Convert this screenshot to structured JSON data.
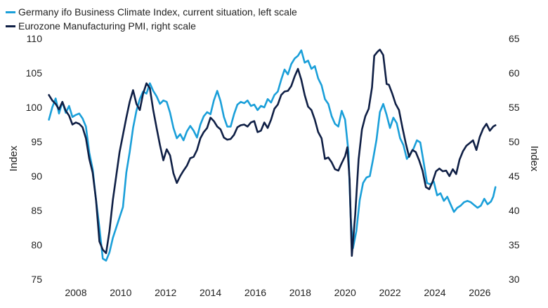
{
  "chart_data": {
    "type": "line",
    "grid": false,
    "legend_position": "top-left",
    "x_ticks": [
      "2008",
      "2010",
      "2012",
      "2014",
      "2016",
      "2018",
      "2020",
      "2022",
      "2024",
      "2026"
    ],
    "xlim": [
      2006.75,
      2027.1
    ],
    "left_axis": {
      "label": "Index",
      "ylim": [
        75,
        110
      ],
      "ticks": [
        "75",
        "80",
        "85",
        "90",
        "95",
        "100",
        "105",
        "110"
      ]
    },
    "right_axis": {
      "label": "Index",
      "ylim": [
        30,
        65
      ],
      "ticks": [
        "30",
        "35",
        "40",
        "45",
        "50",
        "55",
        "60",
        "65"
      ]
    },
    "series": [
      {
        "name": "Germany ifo Business Climate Index, current situation, left scale",
        "axis": "left",
        "color": "#1a9fd9",
        "points": [
          [
            2006.8,
            98.2
          ],
          [
            2006.95,
            100.0
          ],
          [
            2007.1,
            101.3
          ],
          [
            2007.25,
            99.1
          ],
          [
            2007.4,
            100.8
          ],
          [
            2007.55,
            99.2
          ],
          [
            2007.7,
            100.2
          ],
          [
            2007.85,
            98.6
          ],
          [
            2008.0,
            98.9
          ],
          [
            2008.15,
            99.1
          ],
          [
            2008.3,
            98.4
          ],
          [
            2008.45,
            97.2
          ],
          [
            2008.6,
            93.4
          ],
          [
            2008.75,
            91.0
          ],
          [
            2008.9,
            86.5
          ],
          [
            2009.05,
            82.5
          ],
          [
            2009.2,
            78.0
          ],
          [
            2009.35,
            77.7
          ],
          [
            2009.5,
            78.9
          ],
          [
            2009.65,
            81.0
          ],
          [
            2009.8,
            82.5
          ],
          [
            2009.95,
            84.0
          ],
          [
            2010.1,
            85.5
          ],
          [
            2010.25,
            90.5
          ],
          [
            2010.4,
            93.5
          ],
          [
            2010.55,
            97.0
          ],
          [
            2010.7,
            99.5
          ],
          [
            2010.85,
            101.2
          ],
          [
            2011.0,
            102.3
          ],
          [
            2011.15,
            102.0
          ],
          [
            2011.3,
            103.5
          ],
          [
            2011.45,
            102.4
          ],
          [
            2011.6,
            101.6
          ],
          [
            2011.75,
            100.5
          ],
          [
            2011.9,
            101.0
          ],
          [
            2012.05,
            100.8
          ],
          [
            2012.2,
            99.2
          ],
          [
            2012.35,
            97.0
          ],
          [
            2012.5,
            95.5
          ],
          [
            2012.65,
            96.1
          ],
          [
            2012.8,
            95.2
          ],
          [
            2012.95,
            96.5
          ],
          [
            2013.1,
            97.3
          ],
          [
            2013.25,
            96.6
          ],
          [
            2013.4,
            95.6
          ],
          [
            2013.55,
            97.5
          ],
          [
            2013.7,
            98.7
          ],
          [
            2013.85,
            99.3
          ],
          [
            2014.0,
            99.0
          ],
          [
            2014.15,
            101.0
          ],
          [
            2014.3,
            102.4
          ],
          [
            2014.45,
            100.9
          ],
          [
            2014.6,
            98.6
          ],
          [
            2014.75,
            97.2
          ],
          [
            2014.9,
            97.2
          ],
          [
            2015.05,
            99.0
          ],
          [
            2015.2,
            100.4
          ],
          [
            2015.35,
            100.8
          ],
          [
            2015.5,
            100.6
          ],
          [
            2015.65,
            101.0
          ],
          [
            2015.8,
            100.2
          ],
          [
            2015.95,
            100.4
          ],
          [
            2016.1,
            99.6
          ],
          [
            2016.25,
            100.2
          ],
          [
            2016.4,
            100.0
          ],
          [
            2016.55,
            101.2
          ],
          [
            2016.7,
            100.7
          ],
          [
            2016.85,
            101.8
          ],
          [
            2017.0,
            102.3
          ],
          [
            2017.15,
            104.0
          ],
          [
            2017.3,
            105.5
          ],
          [
            2017.45,
            104.8
          ],
          [
            2017.6,
            106.3
          ],
          [
            2017.75,
            107.1
          ],
          [
            2017.9,
            107.5
          ],
          [
            2018.05,
            108.3
          ],
          [
            2018.2,
            106.5
          ],
          [
            2018.35,
            106.8
          ],
          [
            2018.5,
            105.6
          ],
          [
            2018.65,
            106.0
          ],
          [
            2018.8,
            104.2
          ],
          [
            2018.95,
            103.2
          ],
          [
            2019.1,
            101.2
          ],
          [
            2019.25,
            100.5
          ],
          [
            2019.4,
            98.7
          ],
          [
            2019.55,
            97.6
          ],
          [
            2019.7,
            97.2
          ],
          [
            2019.85,
            99.5
          ],
          [
            2020.0,
            98.2
          ],
          [
            2020.15,
            93.5
          ],
          [
            2020.25,
            84.0
          ],
          [
            2020.35,
            79.5
          ],
          [
            2020.5,
            82.0
          ],
          [
            2020.65,
            86.5
          ],
          [
            2020.8,
            89.0
          ],
          [
            2020.95,
            89.8
          ],
          [
            2021.1,
            90.0
          ],
          [
            2021.25,
            92.5
          ],
          [
            2021.4,
            95.3
          ],
          [
            2021.55,
            99.3
          ],
          [
            2021.7,
            100.5
          ],
          [
            2021.85,
            98.9
          ],
          [
            2022.0,
            97.0
          ],
          [
            2022.15,
            98.5
          ],
          [
            2022.3,
            97.7
          ],
          [
            2022.45,
            95.5
          ],
          [
            2022.6,
            94.5
          ],
          [
            2022.75,
            92.5
          ],
          [
            2022.9,
            93.2
          ],
          [
            2023.05,
            94.0
          ],
          [
            2023.2,
            95.2
          ],
          [
            2023.35,
            94.9
          ],
          [
            2023.5,
            92.0
          ],
          [
            2023.65,
            89.0
          ],
          [
            2023.8,
            88.8
          ],
          [
            2023.95,
            89.2
          ],
          [
            2024.1,
            87.2
          ],
          [
            2024.25,
            87.5
          ],
          [
            2024.4,
            86.4
          ],
          [
            2024.55,
            87.0
          ],
          [
            2024.7,
            85.9
          ],
          [
            2024.85,
            84.8
          ],
          [
            2025.0,
            85.4
          ],
          [
            2025.15,
            85.7
          ],
          [
            2025.3,
            86.2
          ],
          [
            2025.45,
            86.4
          ],
          [
            2025.6,
            86.2
          ],
          [
            2025.75,
            85.8
          ],
          [
            2025.9,
            85.4
          ],
          [
            2026.05,
            85.7
          ],
          [
            2026.2,
            86.7
          ],
          [
            2026.35,
            85.9
          ],
          [
            2026.5,
            86.3
          ],
          [
            2026.6,
            87.0
          ],
          [
            2026.7,
            88.4
          ]
        ]
      },
      {
        "name": "Eurozone Manufacturing PMI, right scale",
        "axis": "right",
        "color": "#0f1f45",
        "points": [
          [
            2006.8,
            56.8
          ],
          [
            2006.95,
            56.0
          ],
          [
            2007.1,
            55.5
          ],
          [
            2007.25,
            54.7
          ],
          [
            2007.4,
            55.8
          ],
          [
            2007.55,
            54.5
          ],
          [
            2007.7,
            53.8
          ],
          [
            2007.85,
            52.5
          ],
          [
            2008.0,
            52.8
          ],
          [
            2008.15,
            52.6
          ],
          [
            2008.3,
            52.1
          ],
          [
            2008.45,
            50.5
          ],
          [
            2008.6,
            47.5
          ],
          [
            2008.75,
            45.5
          ],
          [
            2008.9,
            41.5
          ],
          [
            2009.05,
            35.5
          ],
          [
            2009.2,
            34.3
          ],
          [
            2009.35,
            33.8
          ],
          [
            2009.5,
            37.0
          ],
          [
            2009.65,
            41.5
          ],
          [
            2009.8,
            45.0
          ],
          [
            2009.95,
            48.5
          ],
          [
            2010.1,
            51.0
          ],
          [
            2010.25,
            53.5
          ],
          [
            2010.4,
            55.8
          ],
          [
            2010.55,
            57.5
          ],
          [
            2010.7,
            55.5
          ],
          [
            2010.85,
            54.6
          ],
          [
            2011.0,
            57.0
          ],
          [
            2011.15,
            58.5
          ],
          [
            2011.3,
            57.8
          ],
          [
            2011.45,
            54.6
          ],
          [
            2011.6,
            52.0
          ],
          [
            2011.75,
            49.5
          ],
          [
            2011.9,
            47.3
          ],
          [
            2012.05,
            48.9
          ],
          [
            2012.2,
            48.0
          ],
          [
            2012.35,
            45.4
          ],
          [
            2012.5,
            44.0
          ],
          [
            2012.65,
            45.0
          ],
          [
            2012.8,
            45.8
          ],
          [
            2012.95,
            46.5
          ],
          [
            2013.1,
            47.6
          ],
          [
            2013.25,
            47.8
          ],
          [
            2013.4,
            48.8
          ],
          [
            2013.55,
            50.5
          ],
          [
            2013.7,
            51.4
          ],
          [
            2013.85,
            52.0
          ],
          [
            2014.0,
            53.5
          ],
          [
            2014.15,
            53.0
          ],
          [
            2014.3,
            52.2
          ],
          [
            2014.45,
            51.8
          ],
          [
            2014.6,
            50.6
          ],
          [
            2014.75,
            50.3
          ],
          [
            2014.9,
            50.4
          ],
          [
            2015.05,
            51.0
          ],
          [
            2015.2,
            52.1
          ],
          [
            2015.35,
            52.4
          ],
          [
            2015.5,
            52.5
          ],
          [
            2015.65,
            52.2
          ],
          [
            2015.8,
            52.8
          ],
          [
            2015.95,
            53.0
          ],
          [
            2016.1,
            51.4
          ],
          [
            2016.25,
            51.6
          ],
          [
            2016.4,
            52.8
          ],
          [
            2016.55,
            52.0
          ],
          [
            2016.7,
            53.2
          ],
          [
            2016.85,
            54.8
          ],
          [
            2017.0,
            55.4
          ],
          [
            2017.15,
            56.8
          ],
          [
            2017.3,
            57.3
          ],
          [
            2017.45,
            57.4
          ],
          [
            2017.6,
            58.1
          ],
          [
            2017.75,
            59.5
          ],
          [
            2017.9,
            60.6
          ],
          [
            2018.05,
            59.0
          ],
          [
            2018.2,
            56.8
          ],
          [
            2018.35,
            55.1
          ],
          [
            2018.5,
            54.6
          ],
          [
            2018.65,
            53.2
          ],
          [
            2018.8,
            51.4
          ],
          [
            2018.95,
            50.5
          ],
          [
            2019.1,
            47.5
          ],
          [
            2019.25,
            47.7
          ],
          [
            2019.4,
            47.0
          ],
          [
            2019.55,
            46.0
          ],
          [
            2019.7,
            45.8
          ],
          [
            2019.85,
            46.9
          ],
          [
            2020.0,
            47.9
          ],
          [
            2020.1,
            49.2
          ],
          [
            2020.2,
            44.5
          ],
          [
            2020.3,
            33.4
          ],
          [
            2020.45,
            39.4
          ],
          [
            2020.6,
            47.4
          ],
          [
            2020.75,
            51.8
          ],
          [
            2020.9,
            53.7
          ],
          [
            2021.05,
            54.8
          ],
          [
            2021.2,
            57.9
          ],
          [
            2021.3,
            62.5
          ],
          [
            2021.45,
            63.1
          ],
          [
            2021.55,
            63.4
          ],
          [
            2021.7,
            62.6
          ],
          [
            2021.85,
            58.4
          ],
          [
            2021.95,
            58.3
          ],
          [
            2022.1,
            57.0
          ],
          [
            2022.25,
            55.5
          ],
          [
            2022.4,
            54.6
          ],
          [
            2022.55,
            52.1
          ],
          [
            2022.7,
            49.8
          ],
          [
            2022.85,
            47.8
          ],
          [
            2023.0,
            48.8
          ],
          [
            2023.15,
            48.5
          ],
          [
            2023.3,
            47.3
          ],
          [
            2023.45,
            45.8
          ],
          [
            2023.6,
            43.4
          ],
          [
            2023.75,
            43.1
          ],
          [
            2023.9,
            44.2
          ],
          [
            2024.05,
            45.7
          ],
          [
            2024.2,
            46.1
          ],
          [
            2024.35,
            45.7
          ],
          [
            2024.5,
            45.8
          ],
          [
            2024.65,
            45.0
          ],
          [
            2024.8,
            46.0
          ],
          [
            2024.95,
            45.3
          ],
          [
            2025.1,
            47.4
          ],
          [
            2025.25,
            48.6
          ],
          [
            2025.4,
            49.4
          ],
          [
            2025.55,
            49.8
          ],
          [
            2025.7,
            50.2
          ],
          [
            2025.85,
            48.8
          ],
          [
            2026.0,
            50.7
          ],
          [
            2026.15,
            51.9
          ],
          [
            2026.3,
            52.6
          ],
          [
            2026.45,
            51.6
          ],
          [
            2026.6,
            52.2
          ],
          [
            2026.7,
            52.4
          ]
        ]
      }
    ]
  }
}
